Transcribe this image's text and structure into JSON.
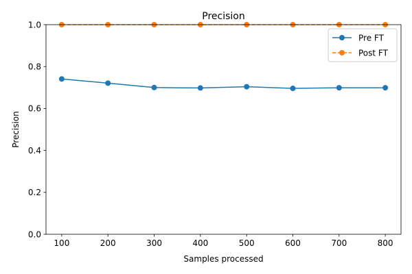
{
  "chart_data": {
    "type": "line",
    "title": "Precision",
    "xlabel": "Samples processed",
    "ylabel": "Precision",
    "x": [
      100,
      200,
      300,
      400,
      500,
      600,
      700,
      800
    ],
    "x_ticks": [
      "100",
      "200",
      "300",
      "400",
      "500",
      "600",
      "700",
      "800"
    ],
    "y_ticks": [
      "0.0",
      "0.2",
      "0.4",
      "0.6",
      "0.8",
      "1.0"
    ],
    "y_tick_values": [
      0.0,
      0.2,
      0.4,
      0.6,
      0.8,
      1.0
    ],
    "xlim": [
      66,
      834
    ],
    "ylim": [
      0.0,
      1.0
    ],
    "grid": false,
    "legend_position": "upper-right",
    "series": [
      {
        "name": "Pre FT",
        "color": "#1f77b4",
        "line_style": "solid",
        "marker": "circle",
        "values": [
          0.741,
          0.721,
          0.7,
          0.698,
          0.704,
          0.696,
          0.699,
          0.699
        ]
      },
      {
        "name": "Post FT",
        "color": "#ff7f0e",
        "line_style": "dashed",
        "marker": "circle",
        "values": [
          1.0,
          1.0,
          1.0,
          1.0,
          1.0,
          1.0,
          1.0,
          1.0
        ]
      }
    ]
  }
}
